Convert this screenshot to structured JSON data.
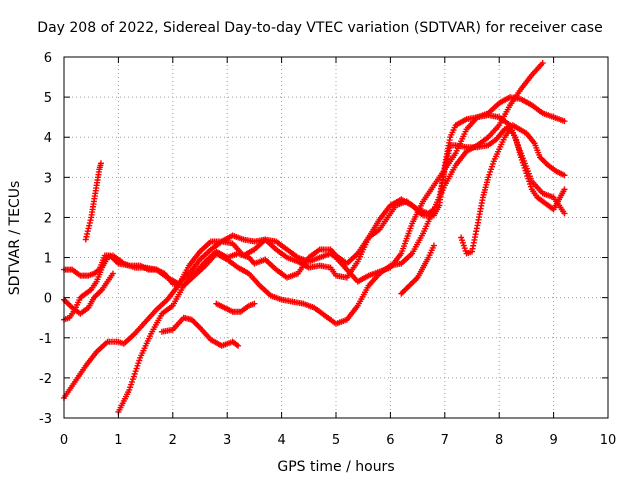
{
  "chart_data": {
    "type": "scatter",
    "title": "Day 208 of 2022, Sidereal Day-to-day VTEC variation (SDTVAR) for receiver case",
    "xlabel": "GPS time / hours",
    "ylabel": "SDTVAR / TECUs",
    "xlim": [
      0,
      10
    ],
    "ylim": [
      -3,
      6
    ],
    "x_ticks": [
      "0",
      "1",
      "2",
      "3",
      "4",
      "5",
      "6",
      "7",
      "8",
      "9",
      "10"
    ],
    "y_ticks": [
      "-3",
      "-2",
      "-1",
      "0",
      "1",
      "2",
      "3",
      "4",
      "5",
      "6"
    ],
    "grid": true,
    "marker": "+",
    "color": "#ff0000",
    "series": [
      {
        "points": [
          [
            0,
            0.7
          ],
          [
            0.15,
            0.7
          ],
          [
            0.3,
            0.55
          ],
          [
            0.45,
            0.55
          ],
          [
            0.55,
            0.6
          ],
          [
            0.65,
            0.7
          ],
          [
            0.75,
            1.05
          ],
          [
            0.85,
            1.05
          ],
          [
            1.0,
            0.85
          ],
          [
            1.2,
            0.8
          ],
          [
            1.4,
            0.8
          ],
          [
            1.55,
            0.7
          ],
          [
            1.7,
            0.7
          ],
          [
            1.85,
            0.6
          ],
          [
            2.0,
            0.35
          ],
          [
            2.2,
            0.3
          ],
          [
            2.4,
            0.6
          ],
          [
            2.6,
            0.9
          ],
          [
            2.8,
            1.15
          ],
          [
            3.0,
            1.0
          ],
          [
            3.2,
            1.1
          ],
          [
            3.4,
            1.0
          ],
          [
            3.5,
            0.85
          ],
          [
            3.7,
            0.95
          ],
          [
            3.9,
            0.7
          ],
          [
            4.1,
            0.5
          ],
          [
            4.3,
            0.6
          ],
          [
            4.5,
            1.0
          ],
          [
            4.7,
            1.2
          ],
          [
            4.9,
            1.2
          ],
          [
            5.0,
            1.05
          ],
          [
            5.2,
            0.85
          ],
          [
            5.4,
            1.1
          ],
          [
            5.6,
            1.5
          ],
          [
            5.8,
            1.7
          ],
          [
            6.0,
            2.1
          ],
          [
            6.1,
            2.3
          ],
          [
            6.3,
            2.4
          ],
          [
            6.5,
            2.2
          ],
          [
            6.7,
            2.1
          ],
          [
            6.8,
            2.2
          ],
          [
            6.9,
            2.5
          ],
          [
            7.0,
            3.2
          ],
          [
            7.1,
            3.8
          ],
          [
            7.2,
            3.8
          ],
          [
            7.4,
            3.75
          ],
          [
            7.6,
            3.75
          ],
          [
            7.8,
            3.8
          ],
          [
            7.95,
            3.95
          ],
          [
            8.1,
            4.2
          ],
          [
            8.25,
            4.3
          ],
          [
            8.5,
            4.1
          ],
          [
            8.65,
            3.85
          ],
          [
            8.75,
            3.5
          ],
          [
            8.9,
            3.3
          ],
          [
            9.05,
            3.15
          ],
          [
            9.2,
            3.05
          ]
        ]
      },
      {
        "points": [
          [
            0,
            -0.55
          ],
          [
            0.1,
            -0.5
          ],
          [
            0.2,
            -0.3
          ],
          [
            0.3,
            0.0
          ],
          [
            0.4,
            0.1
          ],
          [
            0.5,
            0.2
          ],
          [
            0.6,
            0.4
          ],
          [
            0.7,
            0.75
          ],
          [
            0.8,
            1.0
          ],
          [
            0.9,
            1.05
          ],
          [
            1.1,
            0.85
          ],
          [
            1.3,
            0.75
          ],
          [
            1.5,
            0.75
          ],
          [
            1.7,
            0.7
          ],
          [
            1.9,
            0.5
          ],
          [
            2.1,
            0.35
          ],
          [
            2.3,
            0.6
          ],
          [
            2.5,
            0.95
          ],
          [
            2.7,
            1.2
          ],
          [
            2.9,
            1.4
          ],
          [
            3.1,
            1.55
          ],
          [
            3.3,
            1.45
          ],
          [
            3.5,
            1.4
          ],
          [
            3.7,
            1.45
          ],
          [
            3.9,
            1.2
          ],
          [
            4.1,
            1.0
          ],
          [
            4.3,
            0.9
          ],
          [
            4.5,
            0.75
          ],
          [
            4.7,
            0.8
          ],
          [
            4.9,
            0.75
          ],
          [
            5.0,
            0.55
          ],
          [
            5.2,
            0.5
          ],
          [
            5.4,
            0.9
          ],
          [
            5.6,
            1.5
          ],
          [
            5.8,
            1.95
          ],
          [
            6.0,
            2.3
          ],
          [
            6.2,
            2.45
          ],
          [
            6.4,
            2.3
          ],
          [
            6.6,
            2.05
          ],
          [
            6.8,
            2.05
          ],
          [
            6.9,
            2.3
          ],
          [
            7.0,
            3.3
          ],
          [
            7.1,
            4.0
          ],
          [
            7.2,
            4.3
          ],
          [
            7.4,
            4.45
          ],
          [
            7.6,
            4.5
          ],
          [
            7.8,
            4.6
          ],
          [
            8.0,
            4.85
          ],
          [
            8.2,
            5.0
          ],
          [
            8.4,
            4.95
          ],
          [
            8.6,
            4.8
          ],
          [
            8.8,
            4.6
          ],
          [
            9.0,
            4.5
          ],
          [
            9.2,
            4.4
          ]
        ]
      },
      {
        "points": [
          [
            0,
            -0.05
          ],
          [
            0.15,
            -0.25
          ],
          [
            0.3,
            -0.4
          ],
          [
            0.45,
            -0.25
          ],
          [
            0.55,
            0.0
          ],
          [
            0.7,
            0.2
          ],
          [
            0.8,
            0.4
          ],
          [
            0.9,
            0.6
          ]
        ]
      },
      {
        "points": [
          [
            0.4,
            1.45
          ],
          [
            0.5,
            2.0
          ],
          [
            0.55,
            2.4
          ],
          [
            0.6,
            2.8
          ],
          [
            0.65,
            3.2
          ],
          [
            0.68,
            3.35
          ]
        ]
      },
      {
        "points": [
          [
            0,
            -2.5
          ],
          [
            0.2,
            -2.1
          ],
          [
            0.4,
            -1.7
          ],
          [
            0.6,
            -1.35
          ],
          [
            0.8,
            -1.1
          ],
          [
            1.0,
            -1.1
          ],
          [
            1.1,
            -1.15
          ],
          [
            1.3,
            -0.9
          ],
          [
            1.5,
            -0.6
          ],
          [
            1.7,
            -0.3
          ],
          [
            1.9,
            -0.05
          ],
          [
            2.1,
            0.3
          ],
          [
            2.3,
            0.8
          ],
          [
            2.5,
            1.15
          ],
          [
            2.7,
            1.4
          ],
          [
            2.9,
            1.4
          ],
          [
            3.1,
            1.35
          ],
          [
            3.3,
            1.05
          ],
          [
            3.5,
            1.2
          ],
          [
            3.7,
            1.45
          ],
          [
            3.9,
            1.4
          ],
          [
            4.1,
            1.2
          ],
          [
            4.3,
            1.0
          ],
          [
            4.5,
            0.9
          ],
          [
            4.7,
            1.0
          ],
          [
            4.9,
            1.1
          ],
          [
            5.0,
            1.0
          ],
          [
            5.2,
            0.7
          ],
          [
            5.4,
            0.4
          ],
          [
            5.6,
            0.55
          ],
          [
            5.8,
            0.65
          ],
          [
            6.0,
            0.75
          ],
          [
            6.2,
            1.1
          ],
          [
            6.4,
            1.85
          ],
          [
            6.6,
            2.4
          ],
          [
            6.8,
            2.8
          ],
          [
            7.0,
            3.2
          ],
          [
            7.2,
            3.6
          ],
          [
            7.4,
            4.2
          ],
          [
            7.6,
            4.5
          ],
          [
            7.8,
            4.55
          ],
          [
            8.0,
            4.5
          ],
          [
            8.2,
            4.3
          ],
          [
            8.4,
            3.6
          ],
          [
            8.6,
            2.9
          ],
          [
            8.8,
            2.6
          ],
          [
            9.0,
            2.5
          ],
          [
            9.2,
            2.1
          ]
        ]
      },
      {
        "points": [
          [
            1.0,
            -2.85
          ],
          [
            1.2,
            -2.3
          ],
          [
            1.4,
            -1.5
          ],
          [
            1.6,
            -0.9
          ],
          [
            1.8,
            -0.4
          ],
          [
            2.0,
            -0.2
          ],
          [
            2.2,
            0.3
          ],
          [
            2.4,
            0.55
          ],
          [
            2.6,
            0.8
          ],
          [
            2.8,
            1.1
          ],
          [
            3.0,
            0.95
          ],
          [
            3.2,
            0.75
          ],
          [
            3.4,
            0.6
          ],
          [
            3.6,
            0.3
          ],
          [
            3.8,
            0.05
          ],
          [
            4.0,
            -0.05
          ],
          [
            4.2,
            -0.1
          ],
          [
            4.4,
            -0.15
          ],
          [
            4.6,
            -0.25
          ],
          [
            4.8,
            -0.45
          ],
          [
            5.0,
            -0.65
          ],
          [
            5.2,
            -0.55
          ],
          [
            5.4,
            -0.2
          ],
          [
            5.6,
            0.3
          ],
          [
            5.8,
            0.6
          ],
          [
            6.0,
            0.8
          ],
          [
            6.2,
            0.85
          ],
          [
            6.4,
            1.1
          ],
          [
            6.6,
            1.6
          ],
          [
            6.8,
            2.2
          ],
          [
            7.0,
            2.8
          ],
          [
            7.2,
            3.3
          ],
          [
            7.4,
            3.65
          ],
          [
            7.6,
            3.8
          ],
          [
            7.8,
            4.0
          ],
          [
            8.0,
            4.3
          ],
          [
            8.2,
            4.8
          ],
          [
            8.4,
            5.2
          ],
          [
            8.6,
            5.55
          ],
          [
            8.8,
            5.85
          ]
        ]
      },
      {
        "points": [
          [
            2.8,
            -0.15
          ],
          [
            2.95,
            -0.25
          ],
          [
            3.1,
            -0.35
          ],
          [
            3.25,
            -0.35
          ],
          [
            3.4,
            -0.2
          ],
          [
            3.5,
            -0.15
          ]
        ]
      },
      {
        "points": [
          [
            1.8,
            -0.85
          ],
          [
            2.0,
            -0.8
          ],
          [
            2.2,
            -0.5
          ],
          [
            2.35,
            -0.55
          ],
          [
            2.5,
            -0.75
          ],
          [
            2.7,
            -1.05
          ],
          [
            2.9,
            -1.2
          ],
          [
            3.0,
            -1.15
          ],
          [
            3.1,
            -1.1
          ],
          [
            3.2,
            -1.2
          ]
        ]
      },
      {
        "points": [
          [
            6.2,
            0.1
          ],
          [
            6.35,
            0.3
          ],
          [
            6.5,
            0.5
          ],
          [
            6.6,
            0.75
          ],
          [
            6.7,
            1.0
          ],
          [
            6.8,
            1.3
          ]
        ]
      },
      {
        "points": [
          [
            7.3,
            1.5
          ],
          [
            7.4,
            1.1
          ],
          [
            7.5,
            1.15
          ],
          [
            7.6,
            1.8
          ],
          [
            7.7,
            2.5
          ],
          [
            7.8,
            3.0
          ],
          [
            7.9,
            3.4
          ],
          [
            8.0,
            3.7
          ],
          [
            8.1,
            4.0
          ],
          [
            8.2,
            4.2
          ],
          [
            8.3,
            4.0
          ],
          [
            8.4,
            3.5
          ],
          [
            8.5,
            3.1
          ],
          [
            8.6,
            2.7
          ],
          [
            8.7,
            2.5
          ],
          [
            8.8,
            2.4
          ],
          [
            8.9,
            2.3
          ],
          [
            9.0,
            2.2
          ],
          [
            9.1,
            2.45
          ],
          [
            9.2,
            2.7
          ]
        ]
      }
    ]
  }
}
